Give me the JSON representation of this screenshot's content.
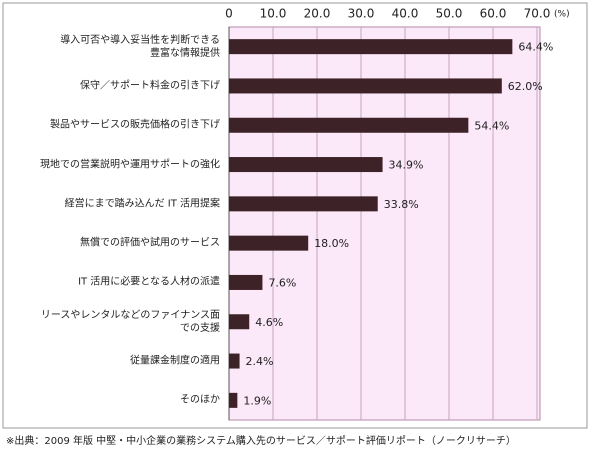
{
  "chart_data": {
    "type": "bar",
    "orientation": "horizontal",
    "categories": [
      "導入可否や導入妥当性を判断できる\n豊富な情報提供",
      "保守／サポート料金の引き下げ",
      "製品やサービスの販売価格の引き下げ",
      "現地での営業説明や運用サポートの強化",
      "経営にまで踏み込んだ IT 活用提案",
      "無償での評価や試用のサービス",
      "IT 活用に必要となる人材の派遣",
      "リースやレンタルなどのファイナンス面\nでの支援",
      "従量課金制度の適用",
      "そのほか"
    ],
    "values": [
      64.4,
      62.0,
      54.4,
      34.9,
      33.8,
      18.0,
      7.6,
      4.6,
      2.4,
      1.9
    ],
    "value_labels": [
      "64.4%",
      "62.0%",
      "54.4%",
      "34.9%",
      "33.8%",
      "18.0%",
      "7.6%",
      "4.6%",
      "2.4%",
      "1.9%"
    ],
    "color": "#3d2327",
    "xlim": [
      0,
      70
    ],
    "xticks": [
      0,
      {
        "value": 10,
        "label": "10.0"
      },
      {
        "value": 20,
        "label": "20.0"
      },
      {
        "value": 30,
        "label": "30.0"
      },
      {
        "value": 40,
        "label": "40.0"
      },
      {
        "value": 50,
        "label": "50.0"
      },
      {
        "value": 60,
        "label": "60.0"
      },
      {
        "value": 70,
        "label": "70.0"
      }
    ],
    "axis_unit": "(%)",
    "grid": true,
    "source": "※出典：2009 年版 中堅・中小企業の業務システム購入先のサービス／サポート評価リポート（ノークリサーチ）"
  }
}
